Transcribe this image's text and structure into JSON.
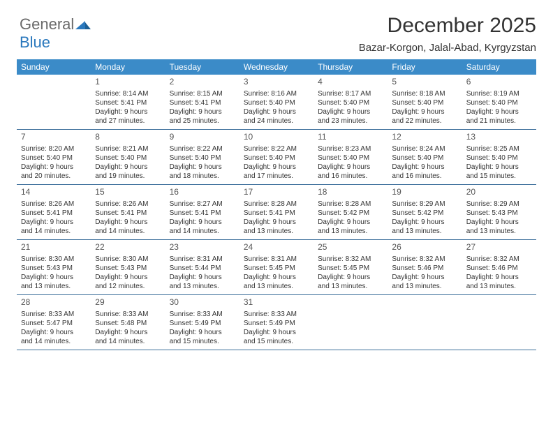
{
  "logo": {
    "part1": "General",
    "part2": "Blue"
  },
  "header": {
    "month_title": "December 2025",
    "location": "Bazar-Korgon, Jalal-Abad, Kyrgyzstan"
  },
  "colors": {
    "header_bg": "#3b8bc8",
    "header_fg": "#ffffff",
    "rule": "#3b6e9a",
    "text": "#333333"
  },
  "dow": [
    "Sunday",
    "Monday",
    "Tuesday",
    "Wednesday",
    "Thursday",
    "Friday",
    "Saturday"
  ],
  "weeks": [
    [
      {
        "n": "",
        "sr": "",
        "ss": "",
        "d1": "",
        "d2": ""
      },
      {
        "n": "1",
        "sr": "Sunrise: 8:14 AM",
        "ss": "Sunset: 5:41 PM",
        "d1": "Daylight: 9 hours",
        "d2": "and 27 minutes."
      },
      {
        "n": "2",
        "sr": "Sunrise: 8:15 AM",
        "ss": "Sunset: 5:41 PM",
        "d1": "Daylight: 9 hours",
        "d2": "and 25 minutes."
      },
      {
        "n": "3",
        "sr": "Sunrise: 8:16 AM",
        "ss": "Sunset: 5:40 PM",
        "d1": "Daylight: 9 hours",
        "d2": "and 24 minutes."
      },
      {
        "n": "4",
        "sr": "Sunrise: 8:17 AM",
        "ss": "Sunset: 5:40 PM",
        "d1": "Daylight: 9 hours",
        "d2": "and 23 minutes."
      },
      {
        "n": "5",
        "sr": "Sunrise: 8:18 AM",
        "ss": "Sunset: 5:40 PM",
        "d1": "Daylight: 9 hours",
        "d2": "and 22 minutes."
      },
      {
        "n": "6",
        "sr": "Sunrise: 8:19 AM",
        "ss": "Sunset: 5:40 PM",
        "d1": "Daylight: 9 hours",
        "d2": "and 21 minutes."
      }
    ],
    [
      {
        "n": "7",
        "sr": "Sunrise: 8:20 AM",
        "ss": "Sunset: 5:40 PM",
        "d1": "Daylight: 9 hours",
        "d2": "and 20 minutes."
      },
      {
        "n": "8",
        "sr": "Sunrise: 8:21 AM",
        "ss": "Sunset: 5:40 PM",
        "d1": "Daylight: 9 hours",
        "d2": "and 19 minutes."
      },
      {
        "n": "9",
        "sr": "Sunrise: 8:22 AM",
        "ss": "Sunset: 5:40 PM",
        "d1": "Daylight: 9 hours",
        "d2": "and 18 minutes."
      },
      {
        "n": "10",
        "sr": "Sunrise: 8:22 AM",
        "ss": "Sunset: 5:40 PM",
        "d1": "Daylight: 9 hours",
        "d2": "and 17 minutes."
      },
      {
        "n": "11",
        "sr": "Sunrise: 8:23 AM",
        "ss": "Sunset: 5:40 PM",
        "d1": "Daylight: 9 hours",
        "d2": "and 16 minutes."
      },
      {
        "n": "12",
        "sr": "Sunrise: 8:24 AM",
        "ss": "Sunset: 5:40 PM",
        "d1": "Daylight: 9 hours",
        "d2": "and 16 minutes."
      },
      {
        "n": "13",
        "sr": "Sunrise: 8:25 AM",
        "ss": "Sunset: 5:40 PM",
        "d1": "Daylight: 9 hours",
        "d2": "and 15 minutes."
      }
    ],
    [
      {
        "n": "14",
        "sr": "Sunrise: 8:26 AM",
        "ss": "Sunset: 5:41 PM",
        "d1": "Daylight: 9 hours",
        "d2": "and 14 minutes."
      },
      {
        "n": "15",
        "sr": "Sunrise: 8:26 AM",
        "ss": "Sunset: 5:41 PM",
        "d1": "Daylight: 9 hours",
        "d2": "and 14 minutes."
      },
      {
        "n": "16",
        "sr": "Sunrise: 8:27 AM",
        "ss": "Sunset: 5:41 PM",
        "d1": "Daylight: 9 hours",
        "d2": "and 14 minutes."
      },
      {
        "n": "17",
        "sr": "Sunrise: 8:28 AM",
        "ss": "Sunset: 5:41 PM",
        "d1": "Daylight: 9 hours",
        "d2": "and 13 minutes."
      },
      {
        "n": "18",
        "sr": "Sunrise: 8:28 AM",
        "ss": "Sunset: 5:42 PM",
        "d1": "Daylight: 9 hours",
        "d2": "and 13 minutes."
      },
      {
        "n": "19",
        "sr": "Sunrise: 8:29 AM",
        "ss": "Sunset: 5:42 PM",
        "d1": "Daylight: 9 hours",
        "d2": "and 13 minutes."
      },
      {
        "n": "20",
        "sr": "Sunrise: 8:29 AM",
        "ss": "Sunset: 5:43 PM",
        "d1": "Daylight: 9 hours",
        "d2": "and 13 minutes."
      }
    ],
    [
      {
        "n": "21",
        "sr": "Sunrise: 8:30 AM",
        "ss": "Sunset: 5:43 PM",
        "d1": "Daylight: 9 hours",
        "d2": "and 13 minutes."
      },
      {
        "n": "22",
        "sr": "Sunrise: 8:30 AM",
        "ss": "Sunset: 5:43 PM",
        "d1": "Daylight: 9 hours",
        "d2": "and 12 minutes."
      },
      {
        "n": "23",
        "sr": "Sunrise: 8:31 AM",
        "ss": "Sunset: 5:44 PM",
        "d1": "Daylight: 9 hours",
        "d2": "and 13 minutes."
      },
      {
        "n": "24",
        "sr": "Sunrise: 8:31 AM",
        "ss": "Sunset: 5:45 PM",
        "d1": "Daylight: 9 hours",
        "d2": "and 13 minutes."
      },
      {
        "n": "25",
        "sr": "Sunrise: 8:32 AM",
        "ss": "Sunset: 5:45 PM",
        "d1": "Daylight: 9 hours",
        "d2": "and 13 minutes."
      },
      {
        "n": "26",
        "sr": "Sunrise: 8:32 AM",
        "ss": "Sunset: 5:46 PM",
        "d1": "Daylight: 9 hours",
        "d2": "and 13 minutes."
      },
      {
        "n": "27",
        "sr": "Sunrise: 8:32 AM",
        "ss": "Sunset: 5:46 PM",
        "d1": "Daylight: 9 hours",
        "d2": "and 13 minutes."
      }
    ],
    [
      {
        "n": "28",
        "sr": "Sunrise: 8:33 AM",
        "ss": "Sunset: 5:47 PM",
        "d1": "Daylight: 9 hours",
        "d2": "and 14 minutes."
      },
      {
        "n": "29",
        "sr": "Sunrise: 8:33 AM",
        "ss": "Sunset: 5:48 PM",
        "d1": "Daylight: 9 hours",
        "d2": "and 14 minutes."
      },
      {
        "n": "30",
        "sr": "Sunrise: 8:33 AM",
        "ss": "Sunset: 5:49 PM",
        "d1": "Daylight: 9 hours",
        "d2": "and 15 minutes."
      },
      {
        "n": "31",
        "sr": "Sunrise: 8:33 AM",
        "ss": "Sunset: 5:49 PM",
        "d1": "Daylight: 9 hours",
        "d2": "and 15 minutes."
      },
      {
        "n": "",
        "sr": "",
        "ss": "",
        "d1": "",
        "d2": ""
      },
      {
        "n": "",
        "sr": "",
        "ss": "",
        "d1": "",
        "d2": ""
      },
      {
        "n": "",
        "sr": "",
        "ss": "",
        "d1": "",
        "d2": ""
      }
    ]
  ]
}
